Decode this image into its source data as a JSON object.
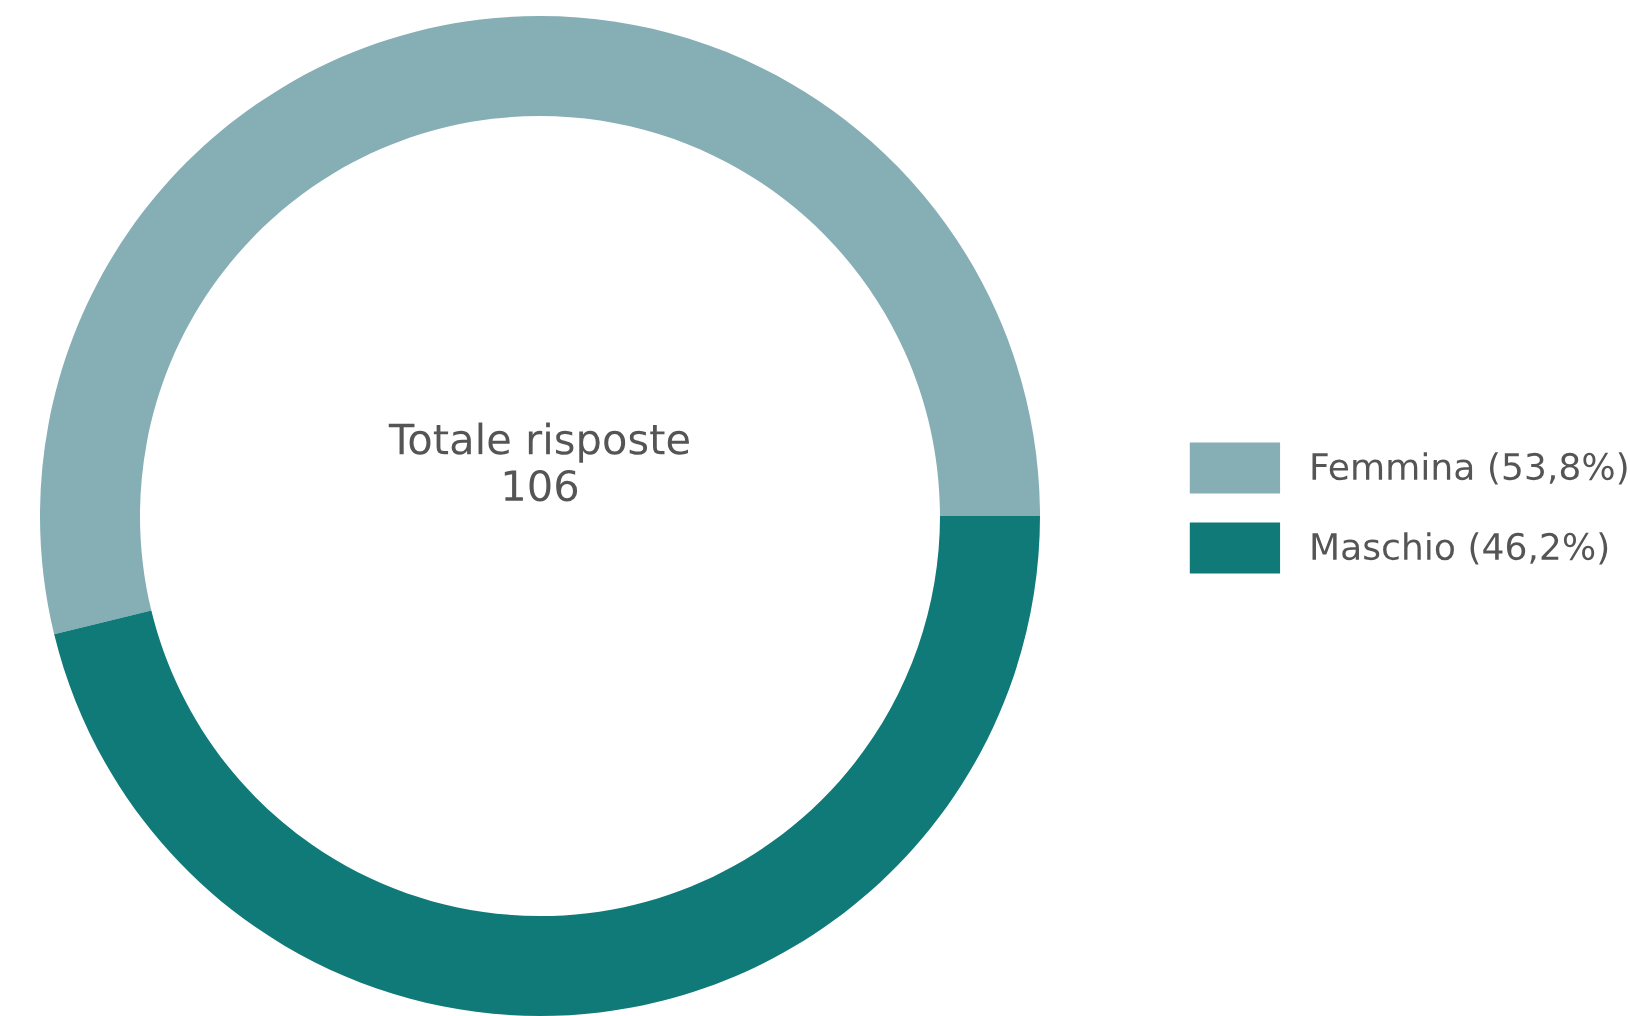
{
  "chart_data": {
    "type": "donut",
    "categories": [
      "Femmina (53,8%)",
      "Maschio (46,2%)"
    ],
    "values": [
      53.8,
      46.2
    ],
    "colors": [
      "#86aeb5",
      "#0f7a78"
    ],
    "annotations": [
      "Totale risposte\n106"
    ],
    "legend": "right"
  }
}
